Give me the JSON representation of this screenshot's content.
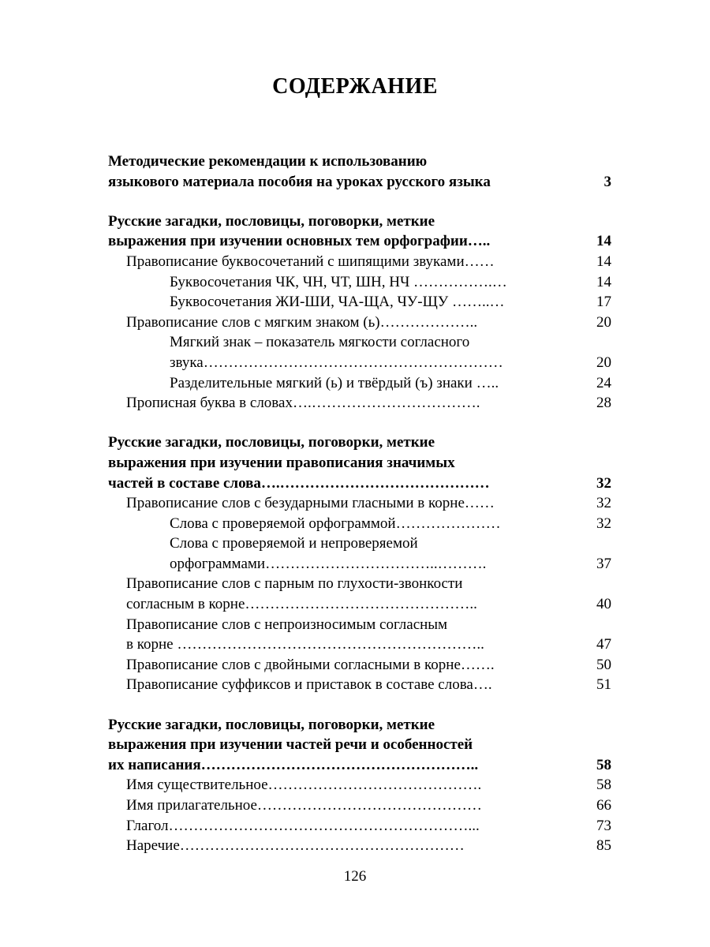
{
  "title": "СОДЕРЖАНИЕ",
  "sections": [
    {
      "entries": [
        {
          "level": 1,
          "bold": true,
          "lines": [
            "Методические рекомендации к использованию",
            "языкового материала пособия на уроках русского языка"
          ],
          "page": "3"
        }
      ]
    },
    {
      "entries": [
        {
          "level": 1,
          "bold": true,
          "lines": [
            "Русские загадки, пословицы, поговорки, меткие",
            "выражения при изучении основных тем орфографии….."
          ],
          "page": "14"
        },
        {
          "level": 2,
          "bold": false,
          "lines": [
            "Правописание буквосочетаний с шипящими звуками……"
          ],
          "page": "14"
        },
        {
          "level": 3,
          "bold": false,
          "lines": [
            "Буквосочетания ЧК, ЧН, ЧТ, ШН, НЧ …………….…"
          ],
          "page": "14"
        },
        {
          "level": 3,
          "bold": false,
          "lines": [
            "Буквосочетания ЖИ-ШИ, ЧА-ЩА, ЧУ-ЩУ ……..…"
          ],
          "page": "17"
        },
        {
          "level": 2,
          "bold": false,
          "lines": [
            "Правописание слов с мягким знаком (ь)……………….."
          ],
          "page": "20"
        },
        {
          "level": 3,
          "bold": false,
          "lines": [
            "Мягкий знак – показатель мягкости согласного",
            "звука……………………………………………………"
          ],
          "page": "20"
        },
        {
          "level": 3,
          "bold": false,
          "lines": [
            "Разделительные мягкий (ь) и твёрдый (ъ) знаки ….."
          ],
          "page": "24"
        },
        {
          "level": 2,
          "bold": false,
          "lines": [
            "Прописная буква в словах….……………………………."
          ],
          "page": "28"
        }
      ]
    },
    {
      "entries": [
        {
          "level": 1,
          "bold": true,
          "lines": [
            "Русские загадки, пословицы, поговорки, меткие",
            "выражения при изучении правописания значимых",
            "частей в составе слова….……………………………………"
          ],
          "page": "32"
        },
        {
          "level": 2,
          "bold": false,
          "lines": [
            "Правописание слов с безударными гласными в корне……"
          ],
          "page": "32"
        },
        {
          "level": 3,
          "bold": false,
          "lines": [
            "Слова с проверяемой орфограммой…………………"
          ],
          "page": "32"
        },
        {
          "level": 3,
          "bold": false,
          "lines": [
            "Слова с проверяемой и непроверяемой",
            "орфограммами……………………………..………."
          ],
          "page": "37"
        },
        {
          "level": 2,
          "bold": false,
          "lines": [
            "Правописание слов с парным по глухости-звонкости",
            "согласным в корне……………………………………….."
          ],
          "page": "40"
        },
        {
          "level": 2,
          "bold": false,
          "lines": [
            "Правописание слов с непроизносимым согласным",
            "в корне …………………………………………………….."
          ],
          "page": "47"
        },
        {
          "level": 2,
          "bold": false,
          "lines": [
            "Правописание слов с двойными согласными в корне……."
          ],
          "page": "50"
        },
        {
          "level": 2,
          "bold": false,
          "lines": [
            "Правописание суффиксов и приставок в составе слова…."
          ],
          "page": "51"
        }
      ]
    },
    {
      "entries": [
        {
          "level": 1,
          "bold": true,
          "lines": [
            "Русские загадки, пословицы, поговорки, меткие",
            "выражения при изучении частей речи и особенностей",
            "их написания……………………………………………….."
          ],
          "page": "58"
        },
        {
          "level": 2,
          "bold": false,
          "lines": [
            "Имя существительное……………………………………."
          ],
          "page": "58"
        },
        {
          "level": 2,
          "bold": false,
          "lines": [
            "Имя прилагательное………………………………………"
          ],
          "page": "66"
        },
        {
          "level": 2,
          "bold": false,
          "lines": [
            "Глагол……………………………………………………..."
          ],
          "page": "73"
        },
        {
          "level": 2,
          "bold": false,
          "lines": [
            "Наречие…………………………………………………"
          ],
          "page": "85"
        }
      ]
    }
  ],
  "page_number": "126"
}
